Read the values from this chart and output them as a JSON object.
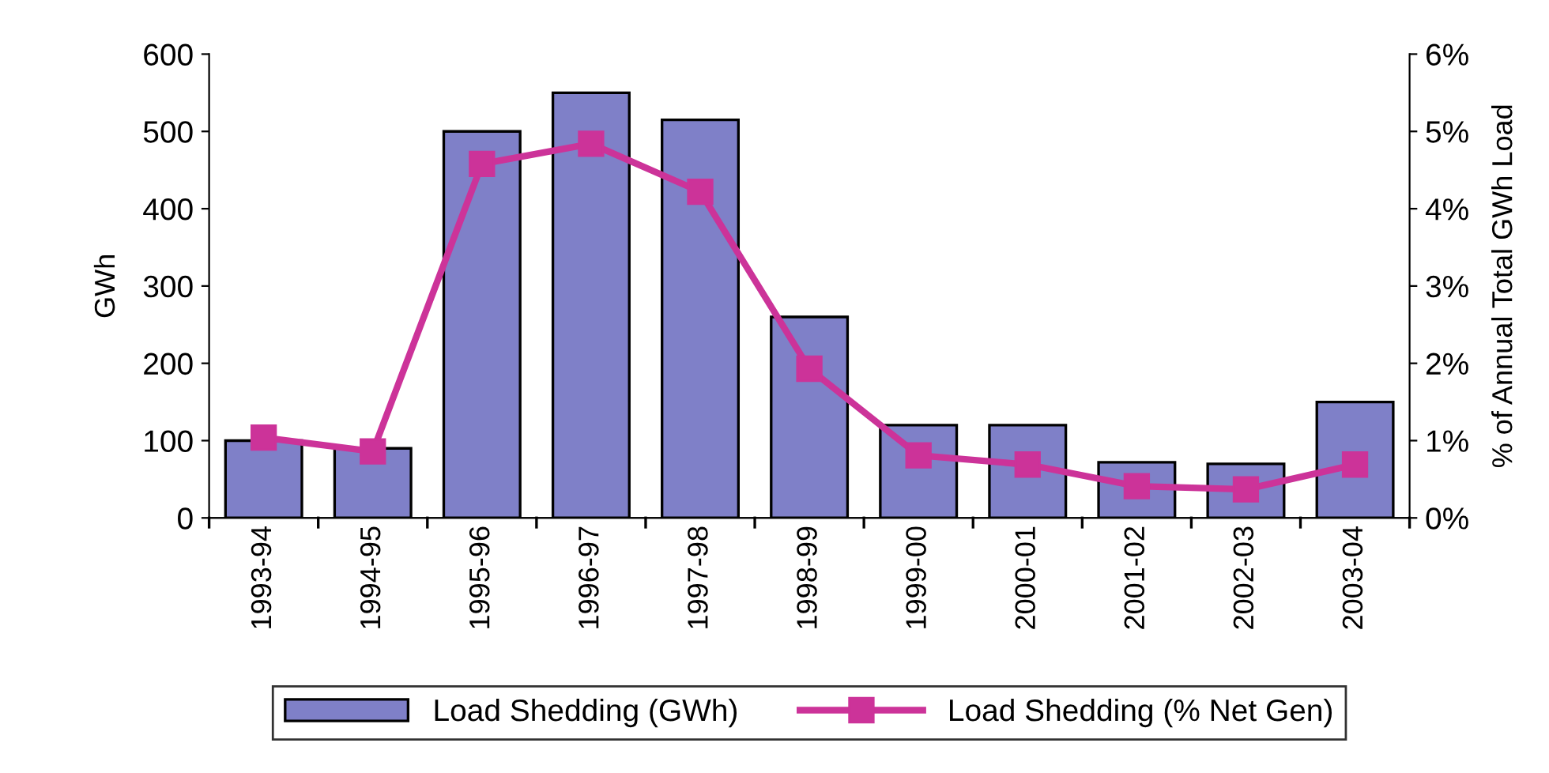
{
  "chart_data": {
    "type": "bar",
    "ylabel": "GWh",
    "y2label": "% of Annual Total GWh Load",
    "categories": [
      "1993-94",
      "1994-95",
      "1995-96",
      "1996-97",
      "1997-98",
      "1998-99",
      "1999-00",
      "2000-01",
      "2001-02",
      "2002-03",
      "2003-04"
    ],
    "series": [
      {
        "name": "Load Shedding (GWh)",
        "color": "#7f80c8",
        "values": [
          100,
          90,
          500,
          550,
          515,
          260,
          120,
          120,
          72,
          70,
          150
        ]
      },
      {
        "name": "Load Shedding (% Net Gen)",
        "type": "line",
        "axis": "y2",
        "color": "#cc3399",
        "marker": "square",
        "values": [
          1.04,
          0.86,
          4.58,
          4.84,
          4.22,
          1.93,
          0.81,
          0.69,
          0.41,
          0.37,
          0.69
        ]
      }
    ],
    "ylim": [
      0,
      600
    ],
    "yticks": [
      0,
      100,
      200,
      300,
      400,
      500,
      600
    ],
    "y2lim": [
      0,
      6
    ],
    "y2ticks": [
      {
        "value": 0,
        "label": "0%"
      },
      {
        "value": 1,
        "label": "1%"
      },
      {
        "value": 2,
        "label": "2%"
      },
      {
        "value": 3,
        "label": "3%"
      },
      {
        "value": 4,
        "label": "4%"
      },
      {
        "value": 5,
        "label": "5%"
      },
      {
        "value": 6,
        "label": "6%"
      }
    ],
    "grid": false,
    "legend": "bottom"
  }
}
